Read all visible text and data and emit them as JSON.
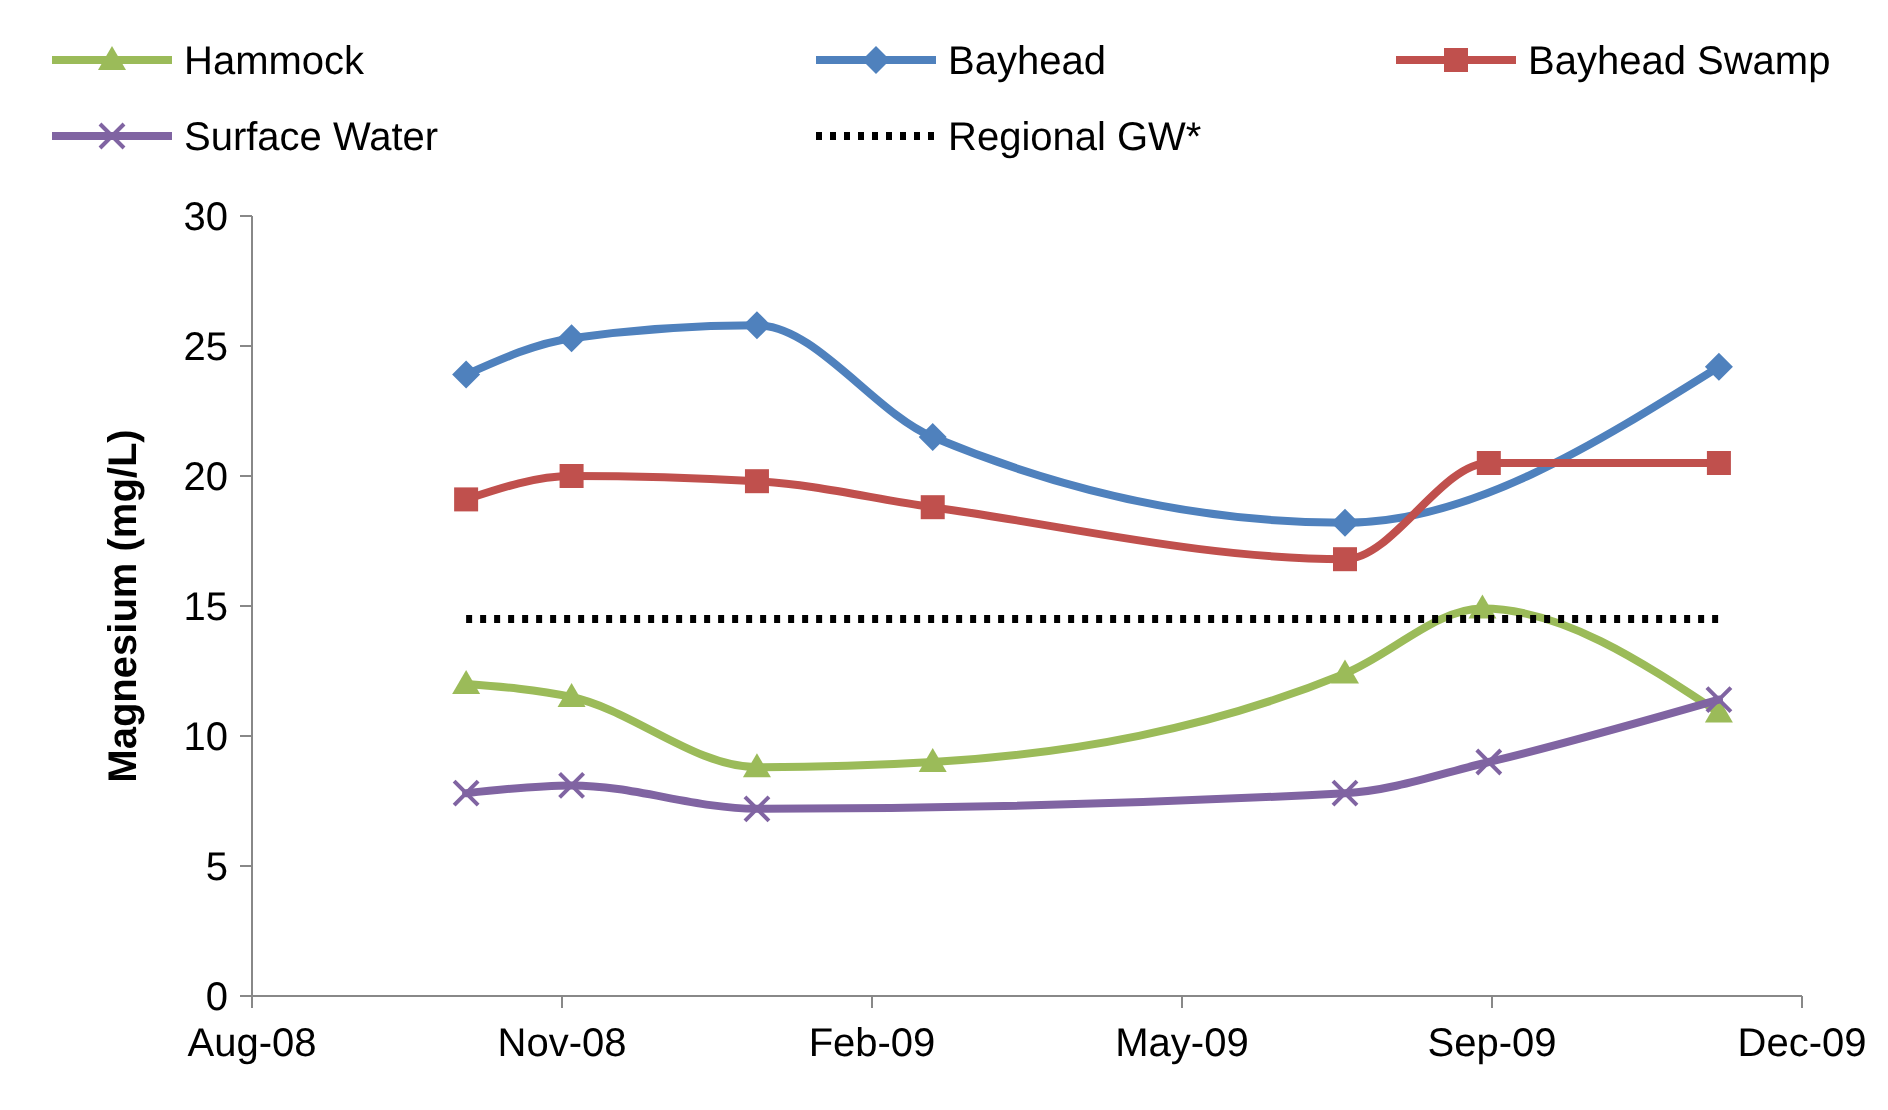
{
  "chart_data": {
    "type": "line",
    "ylabel": "Magnesium (mg/L)",
    "xlim": [
      "2008-08-10",
      "2009-12-08"
    ],
    "xticks": [
      {
        "value": "2008-08-10",
        "label": "Aug-08"
      },
      {
        "value": "2008-11-15",
        "label": "Nov-08"
      },
      {
        "value": "2009-02-20",
        "label": "Feb-09"
      },
      {
        "value": "2009-05-28",
        "label": "May-09"
      },
      {
        "value": "2009-09-02",
        "label": "Sep-09"
      },
      {
        "value": "2009-12-08",
        "label": "Dec-09"
      }
    ],
    "ylim": [
      0,
      30
    ],
    "yticks": [
      0,
      5,
      10,
      15,
      20,
      25,
      30
    ],
    "grid": false,
    "legend": "top",
    "series": [
      {
        "name": "Hammock",
        "color": "#9bbb59",
        "marker": "triangle",
        "x": [
          "2008-10-16",
          "2008-11-18",
          "2009-01-15",
          "2009-03-11",
          "2009-07-18",
          "2009-08-30",
          "2009-11-12"
        ],
        "values": [
          12.0,
          11.5,
          8.8,
          9.0,
          12.4,
          14.9,
          10.9
        ]
      },
      {
        "name": "Bayhead",
        "color": "#4f81bd",
        "marker": "diamond",
        "x": [
          "2008-10-16",
          "2008-11-18",
          "2009-01-15",
          "2009-03-11",
          "2009-07-18",
          "2009-11-12"
        ],
        "values": [
          23.9,
          25.3,
          25.8,
          21.5,
          18.2,
          24.2
        ]
      },
      {
        "name": "Bayhead Swamp",
        "color": "#c0504d",
        "marker": "square",
        "x": [
          "2008-10-16",
          "2008-11-18",
          "2009-01-15",
          "2009-03-11",
          "2009-07-18",
          "2009-09-01",
          "2009-11-12"
        ],
        "values": [
          19.1,
          20.0,
          19.8,
          18.8,
          16.8,
          20.5,
          20.5
        ]
      },
      {
        "name": "Surface Water",
        "color": "#8064a2",
        "marker": "cross",
        "x": [
          "2008-10-16",
          "2008-11-18",
          "2009-01-15",
          "2009-07-18",
          "2009-09-01",
          "2009-11-12"
        ],
        "values": [
          7.8,
          8.1,
          7.2,
          7.8,
          9.0,
          11.4
        ]
      },
      {
        "name": "Regional GW*",
        "color": "#000000",
        "marker": "none",
        "line_style": "dotted",
        "x": [
          "2008-10-16",
          "2009-11-12"
        ],
        "values": [
          14.5,
          14.5
        ]
      }
    ]
  }
}
